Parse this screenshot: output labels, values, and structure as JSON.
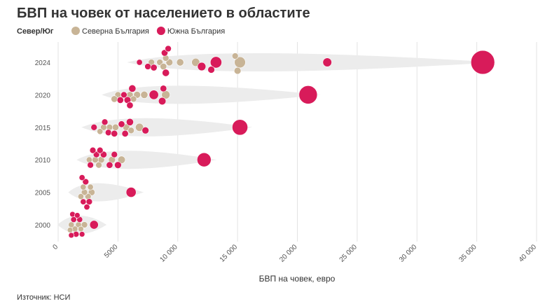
{
  "chart_data": {
    "type": "beeswarm",
    "title": "БВП на човек от населението в областите",
    "legend_title": "Север/Юг",
    "x_label": "БВП на човек, евро",
    "source": "Източник: НСИ",
    "categories": [
      "2024",
      "2020",
      "2015",
      "2010",
      "2005",
      "2000"
    ],
    "xlim": [
      0,
      40000
    ],
    "xticks": [
      0,
      5000,
      {
        "value": 10000,
        "label": "10 000"
      },
      {
        "value": 15000,
        "label": "15 000"
      },
      {
        "value": 20000,
        "label": "20 000"
      },
      {
        "value": 25000,
        "label": "25 000"
      },
      {
        "value": 30000,
        "label": "30 000"
      },
      {
        "value": 35000,
        "label": "35 000"
      },
      {
        "value": 40000,
        "label": "40 000"
      }
    ],
    "grid": true,
    "series": [
      {
        "name": "Северна България",
        "color": "#c8b496",
        "values": [
          [
            15200,
            15000,
            11500,
            10200,
            9300,
            8500,
            7800,
            8800,
            14800,
            9000
          ],
          [
            9000,
            7200,
            6600,
            6000,
            5000,
            4700,
            6300
          ],
          [
            6800,
            5700,
            4800,
            4300,
            3800,
            3500,
            6100
          ],
          [
            5300,
            4500,
            3600,
            3100,
            2600,
            3400
          ],
          [
            2800,
            2500,
            2200,
            1900,
            2100,
            2700
          ],
          [
            2200,
            1700,
            1400,
            1100,
            1000,
            1900
          ]
        ],
        "sizes": [
          [
            280,
            110,
            150,
            120,
            110,
            90,
            90,
            100,
            90,
            90
          ],
          [
            160,
            120,
            110,
            100,
            90,
            100,
            90
          ],
          [
            150,
            110,
            100,
            90,
            90,
            80,
            90
          ],
          [
            130,
            110,
            100,
            90,
            80,
            90
          ],
          [
            100,
            90,
            90,
            80,
            80,
            80
          ],
          [
            90,
            80,
            80,
            80,
            70,
            70
          ]
        ]
      },
      {
        "name": "Южна България",
        "color": "#d81b5a",
        "values": [
          [
            35500,
            22500,
            13200,
            12000,
            12800,
            9000,
            8900,
            7500,
            6800,
            8000,
            9200
          ],
          [
            20900,
            8000,
            8700,
            6200,
            5800,
            5200,
            6000,
            8800,
            5500
          ],
          [
            15200,
            7300,
            6000,
            5600,
            5300,
            4200,
            3000,
            3900,
            4700
          ],
          [
            12200,
            5000,
            4300,
            3800,
            3200,
            2700,
            2900,
            4700,
            3500
          ],
          [
            6100,
            2600,
            2300,
            2100,
            2400,
            2000
          ],
          [
            3000,
            1800,
            1500,
            1300,
            1200,
            1600,
            1100,
            2000
          ]
        ],
        "sizes": [
          [
            1300,
            180,
            300,
            160,
            110,
            120,
            100,
            90,
            80,
            100,
            90
          ],
          [
            770,
            200,
            130,
            120,
            110,
            100,
            100,
            100,
            90
          ],
          [
            560,
            110,
            120,
            100,
            100,
            90,
            90,
            90,
            100
          ],
          [
            450,
            110,
            100,
            100,
            90,
            90,
            90,
            90,
            90
          ],
          [
            230,
            90,
            90,
            80,
            80,
            80
          ],
          [
            170,
            80,
            80,
            80,
            70,
            70,
            70,
            70
          ]
        ]
      }
    ]
  }
}
